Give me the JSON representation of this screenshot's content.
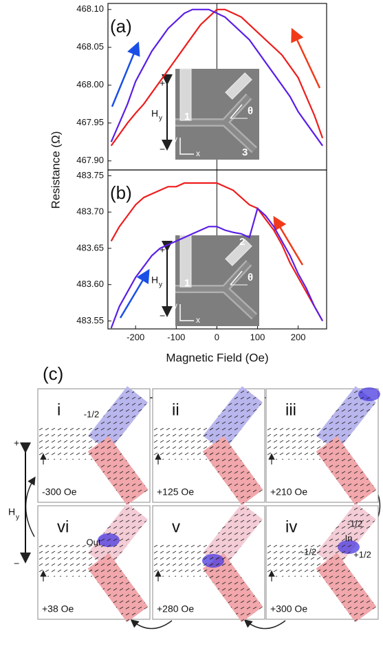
{
  "chart_data": [
    {
      "type": "line",
      "panel_label": "(a)",
      "ylabel": "Resistance (Ω)",
      "xlim": [
        -268,
        270
      ],
      "ylim": [
        467.888,
        468.108
      ],
      "yticks": [
        {
          "value": 467.9,
          "label": "467.90"
        },
        {
          "value": 467.95,
          "label": "467.95"
        },
        {
          "value": 468.0,
          "label": "468.00"
        },
        {
          "value": 468.05,
          "label": "468.05"
        },
        {
          "value": 468.1,
          "label": "468.10"
        }
      ],
      "x": [
        -260,
        -240,
        -220,
        -200,
        -180,
        -160,
        -140,
        -120,
        -100,
        -80,
        -60,
        -40,
        -20,
        0,
        20,
        40,
        60,
        80,
        100,
        120,
        140,
        160,
        180,
        200,
        220,
        240,
        260
      ],
      "series": [
        {
          "color": "#ee1c1c",
          "values": [
            467.92,
            467.935,
            467.95,
            467.963,
            467.975,
            467.99,
            468.005,
            468.02,
            468.035,
            468.05,
            468.065,
            468.08,
            468.09,
            468.1,
            468.1,
            468.095,
            468.09,
            468.08,
            468.07,
            468.06,
            468.05,
            468.04,
            468.025,
            468.01,
            467.985,
            467.96,
            467.93
          ]
        },
        {
          "color": "#5a1ee6",
          "values": [
            467.925,
            467.95,
            467.975,
            468.005,
            468.025,
            468.045,
            468.06,
            468.075,
            468.085,
            468.095,
            468.1,
            468.1,
            468.1,
            468.095,
            468.09,
            468.08,
            468.07,
            468.06,
            468.045,
            468.03,
            468.015,
            468.0,
            467.985,
            467.965,
            467.95,
            467.935,
            467.92
          ]
        }
      ],
      "inset_labels": {
        "plus": "+",
        "minus": "−",
        "field": "H",
        "field_sub": "y",
        "contact_left": "1",
        "contact_right": "3",
        "angle": "θ",
        "axis_y": "y",
        "axis_x": "x"
      }
    },
    {
      "type": "line",
      "panel_label": "(b)",
      "xlabel": "Magnetic Field (Oe)",
      "xlim": [
        -268,
        270
      ],
      "ylim": [
        483.539,
        483.758
      ],
      "xticks": [
        -200,
        -100,
        0,
        100,
        200
      ],
      "yticks": [
        {
          "value": 483.55,
          "label": "483.55"
        },
        {
          "value": 483.6,
          "label": "483.60"
        },
        {
          "value": 483.65,
          "label": "483.65"
        },
        {
          "value": 483.7,
          "label": "483.70"
        },
        {
          "value": 483.75,
          "label": "483.75"
        }
      ],
      "x": [
        -260,
        -240,
        -220,
        -200,
        -180,
        -160,
        -140,
        -120,
        -100,
        -80,
        -60,
        -40,
        -20,
        0,
        20,
        40,
        60,
        80,
        100,
        120,
        140,
        160,
        180,
        200,
        220,
        240,
        260
      ],
      "series": [
        {
          "color": "#ee1c1c",
          "values": [
            483.66,
            483.68,
            483.695,
            483.71,
            483.72,
            483.725,
            483.73,
            483.735,
            483.735,
            483.74,
            483.74,
            483.74,
            483.74,
            483.74,
            483.735,
            483.73,
            483.72,
            483.71,
            483.705,
            483.69,
            483.675,
            483.655,
            483.63,
            483.61,
            483.59,
            483.57,
            483.55
          ]
        },
        {
          "color": "#5a1ee6",
          "values": [
            483.54,
            483.57,
            483.59,
            483.61,
            483.625,
            483.64,
            483.65,
            483.655,
            483.66,
            483.665,
            483.67,
            483.675,
            483.68,
            483.68,
            483.675,
            483.672,
            483.67,
            483.665,
            483.705,
            483.695,
            483.68,
            483.66,
            483.64,
            483.615,
            483.595,
            483.57,
            483.55
          ]
        }
      ],
      "inset_labels": {
        "plus": "+",
        "minus": "−",
        "field": "H",
        "field_sub": "y",
        "contact_left": "1",
        "contact_right": "2",
        "angle": "θ",
        "axis_y": "y",
        "axis_x": "x"
      }
    }
  ],
  "panel_c": {
    "label": "(c)",
    "field_axis": {
      "plus": "+",
      "minus": "−",
      "field": "H",
      "field_sub": "y"
    },
    "panels": [
      {
        "numeral": "i",
        "field": "-300 Oe",
        "notes": [
          "-1/2"
        ]
      },
      {
        "numeral": "ii",
        "field": "+125 Oe",
        "notes": []
      },
      {
        "numeral": "iii",
        "field": "+210 Oe",
        "notes": []
      },
      {
        "numeral": "vi",
        "field": "+38 Oe",
        "notes": [
          "Out"
        ]
      },
      {
        "numeral": "v",
        "field": "+280 Oe",
        "notes": []
      },
      {
        "numeral": "iv",
        "field": "+300 Oe",
        "notes": [
          "-1/2",
          "In",
          "+1/2",
          "-1/2"
        ]
      }
    ]
  }
}
